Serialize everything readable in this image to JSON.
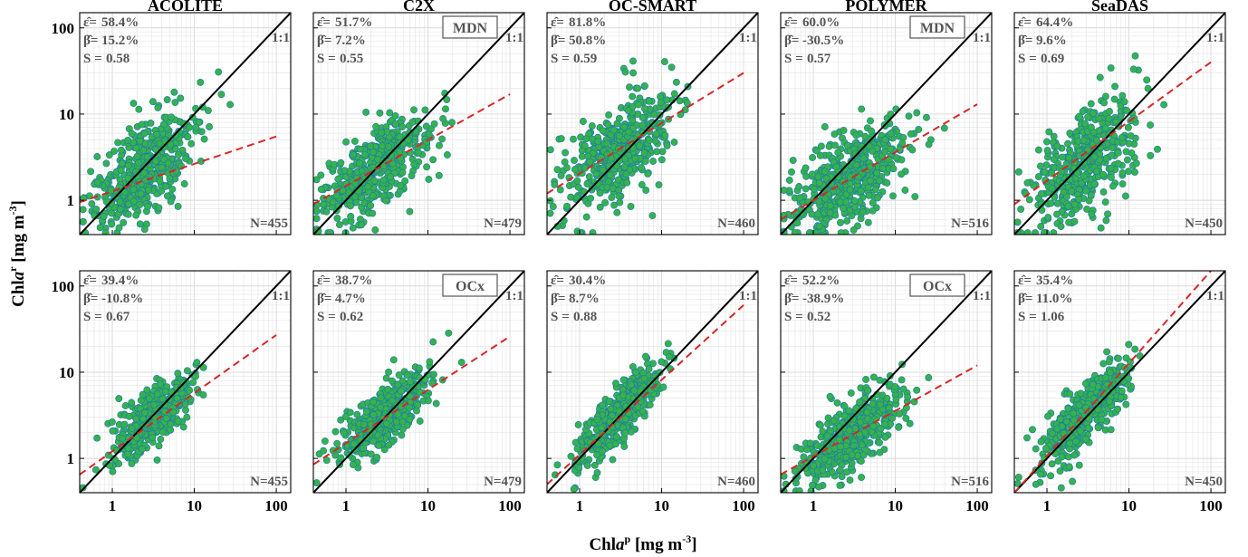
{
  "figure": {
    "ylabel_main": "Chl",
    "ylabel_italic": "a",
    "ylabel_sup": "r",
    "ylabel_unit": " [mg m",
    "ylabel_unit_sup": "-3",
    "ylabel_close": "]",
    "xlabel_main": "Chl",
    "xlabel_italic": "a",
    "xlabel_sup": "p",
    "xlabel_unit": " [mg m",
    "xlabel_unit_sup": "-3",
    "xlabel_close": "]",
    "ytick_labels": [
      "1",
      "10",
      "100"
    ],
    "xtick_labels": [
      "1",
      "10",
      "100"
    ],
    "one_to_one_label": "1:1"
  },
  "colors": {
    "point_fill": "#35b34a",
    "point_edge": "#1f7fa6",
    "one_to_one_line": "#000000",
    "fit_line": "#d62728",
    "grid": "#e4e4e4"
  },
  "chart_data": [
    {
      "type": "scatter",
      "title": "ACOLITE",
      "row": 0,
      "col": 0,
      "scale": "log-log",
      "xlim": [
        0.4,
        150
      ],
      "ylim": [
        0.4,
        150
      ],
      "eps": "58.4%",
      "beta": "15.2%",
      "s": "0.58",
      "n": "N=455",
      "n_points": 455,
      "badge": "",
      "fit": {
        "x": [
          0.4,
          100
        ],
        "y": [
          0.95,
          5.5
        ]
      },
      "cloud": {
        "center": [
          2.5,
          2.2
        ],
        "spread": [
          0.32,
          0.33
        ],
        "corr": 0.55
      }
    },
    {
      "type": "scatter",
      "title": "C2X",
      "row": 0,
      "col": 1,
      "scale": "log-log",
      "xlim": [
        0.4,
        150
      ],
      "ylim": [
        0.4,
        150
      ],
      "eps": "51.7%",
      "beta": "7.2%",
      "s": "0.55",
      "n": "N=479",
      "n_points": 479,
      "badge": "MDN",
      "fit": {
        "x": [
          0.4,
          100
        ],
        "y": [
          0.9,
          17
        ]
      },
      "cloud": {
        "center": [
          2.3,
          2.4
        ],
        "spread": [
          0.33,
          0.3
        ],
        "corr": 0.65
      }
    },
    {
      "type": "scatter",
      "title": "OC-SMART",
      "row": 0,
      "col": 2,
      "scale": "log-log",
      "xlim": [
        0.4,
        150
      ],
      "ylim": [
        0.4,
        150
      ],
      "eps": "81.8%",
      "beta": "50.8%",
      "s": "0.59",
      "n": "N=460",
      "n_points": 460,
      "badge": "",
      "fit": {
        "x": [
          0.4,
          100
        ],
        "y": [
          1.2,
          30
        ]
      },
      "cloud": {
        "center": [
          3.0,
          3.8
        ],
        "spread": [
          0.35,
          0.37
        ],
        "corr": 0.62
      }
    },
    {
      "type": "scatter",
      "title": "POLYMER",
      "row": 0,
      "col": 3,
      "scale": "log-log",
      "xlim": [
        0.4,
        150
      ],
      "ylim": [
        0.4,
        150
      ],
      "eps": "60.0%",
      "beta": "-30.5%",
      "s": "0.57",
      "n": "N=516",
      "n_points": 516,
      "badge": "MDN",
      "fit": {
        "x": [
          0.4,
          100
        ],
        "y": [
          0.6,
          13
        ]
      },
      "cloud": {
        "center": [
          2.8,
          1.9
        ],
        "spread": [
          0.36,
          0.32
        ],
        "corr": 0.62
      }
    },
    {
      "type": "scatter",
      "title": "SeaDAS",
      "row": 0,
      "col": 4,
      "scale": "log-log",
      "xlim": [
        0.4,
        150
      ],
      "ylim": [
        0.4,
        150
      ],
      "eps": "64.4%",
      "beta": "9.6%",
      "s": "0.69",
      "n": "N=450",
      "n_points": 450,
      "badge": "",
      "fit": {
        "x": [
          0.4,
          100
        ],
        "y": [
          0.9,
          40
        ]
      },
      "cloud": {
        "center": [
          3.0,
          3.0
        ],
        "spread": [
          0.33,
          0.38
        ],
        "corr": 0.6
      }
    },
    {
      "type": "scatter",
      "title": "",
      "row": 1,
      "col": 0,
      "scale": "log-log",
      "xlim": [
        0.4,
        150
      ],
      "ylim": [
        0.4,
        150
      ],
      "eps": "39.4%",
      "beta": "-10.8%",
      "s": "0.67",
      "n": "N=455",
      "n_points": 455,
      "badge": "",
      "fit": {
        "x": [
          0.4,
          100
        ],
        "y": [
          0.65,
          27
        ]
      },
      "cloud": {
        "center": [
          3.0,
          3.0
        ],
        "spread": [
          0.27,
          0.26
        ],
        "corr": 0.75
      }
    },
    {
      "type": "scatter",
      "title": "",
      "row": 1,
      "col": 1,
      "scale": "log-log",
      "xlim": [
        0.4,
        150
      ],
      "ylim": [
        0.4,
        150
      ],
      "eps": "38.7%",
      "beta": "4.7%",
      "s": "0.62",
      "n": "N=479",
      "n_points": 479,
      "badge": "OCx",
      "fit": {
        "x": [
          0.4,
          100
        ],
        "y": [
          0.85,
          26
        ]
      },
      "cloud": {
        "center": [
          3.0,
          3.2
        ],
        "spread": [
          0.27,
          0.26
        ],
        "corr": 0.78
      }
    },
    {
      "type": "scatter",
      "title": "",
      "row": 1,
      "col": 2,
      "scale": "log-log",
      "xlim": [
        0.4,
        150
      ],
      "ylim": [
        0.4,
        150
      ],
      "eps": "30.4%",
      "beta": "8.7%",
      "s": "0.88",
      "n": "N=460",
      "n_points": 460,
      "badge": "",
      "fit": {
        "x": [
          0.4,
          100
        ],
        "y": [
          0.5,
          60
        ]
      },
      "cloud": {
        "center": [
          3.0,
          3.2
        ],
        "spread": [
          0.27,
          0.3
        ],
        "corr": 0.85
      }
    },
    {
      "type": "scatter",
      "title": "",
      "row": 1,
      "col": 3,
      "scale": "log-log",
      "xlim": [
        0.4,
        150
      ],
      "ylim": [
        0.4,
        150
      ],
      "eps": "52.2%",
      "beta": "-38.9%",
      "s": "0.52",
      "n": "N=516",
      "n_points": 516,
      "badge": "OCx",
      "fit": {
        "x": [
          0.4,
          100
        ],
        "y": [
          0.65,
          12
        ]
      },
      "cloud": {
        "center": [
          3.0,
          1.9
        ],
        "spread": [
          0.3,
          0.27
        ],
        "corr": 0.7
      }
    },
    {
      "type": "scatter",
      "title": "",
      "row": 1,
      "col": 4,
      "scale": "log-log",
      "xlim": [
        0.4,
        150
      ],
      "ylim": [
        0.4,
        150
      ],
      "eps": "35.4%",
      "beta": "11.0%",
      "s": "1.06",
      "n": "N=450",
      "n_points": 450,
      "badge": "",
      "fit": {
        "x": [
          0.4,
          100
        ],
        "y": [
          0.4,
          150
        ]
      },
      "cloud": {
        "center": [
          3.0,
          3.4
        ],
        "spread": [
          0.27,
          0.31
        ],
        "corr": 0.82
      }
    }
  ]
}
